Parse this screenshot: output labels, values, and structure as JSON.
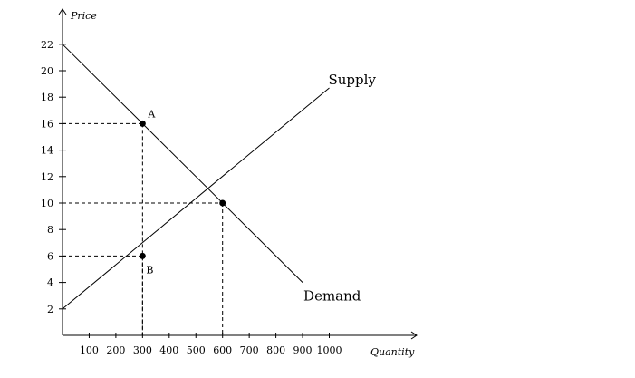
{
  "chart_data": {
    "type": "line",
    "xlabel": "Quantity",
    "ylabel": "Price",
    "xlim": [
      0,
      1100
    ],
    "ylim": [
      0,
      24
    ],
    "x_ticks": [
      100,
      200,
      300,
      400,
      500,
      600,
      700,
      800,
      900,
      1000
    ],
    "y_ticks": [
      2,
      4,
      6,
      8,
      10,
      12,
      14,
      16,
      18,
      20,
      22
    ],
    "grid": false,
    "series": [
      {
        "name": "Supply",
        "x": [
          0,
          1000
        ],
        "y": [
          2,
          18.7
        ],
        "color": "#000000"
      },
      {
        "name": "Demand",
        "x": [
          0,
          900
        ],
        "y": [
          22,
          4
        ],
        "color": "#000000"
      }
    ],
    "points": [
      {
        "label": "A",
        "x": 300,
        "y": 16,
        "label_pos": "above-right"
      },
      {
        "label": "B",
        "x": 300,
        "y": 6,
        "label_pos": "below-right"
      },
      {
        "label": "",
        "x": 600,
        "y": 10,
        "label_pos": "none"
      }
    ],
    "guides": [
      {
        "x": 300,
        "y": 16
      },
      {
        "x": 300,
        "y": 6
      },
      {
        "x": 600,
        "y": 10
      }
    ]
  }
}
